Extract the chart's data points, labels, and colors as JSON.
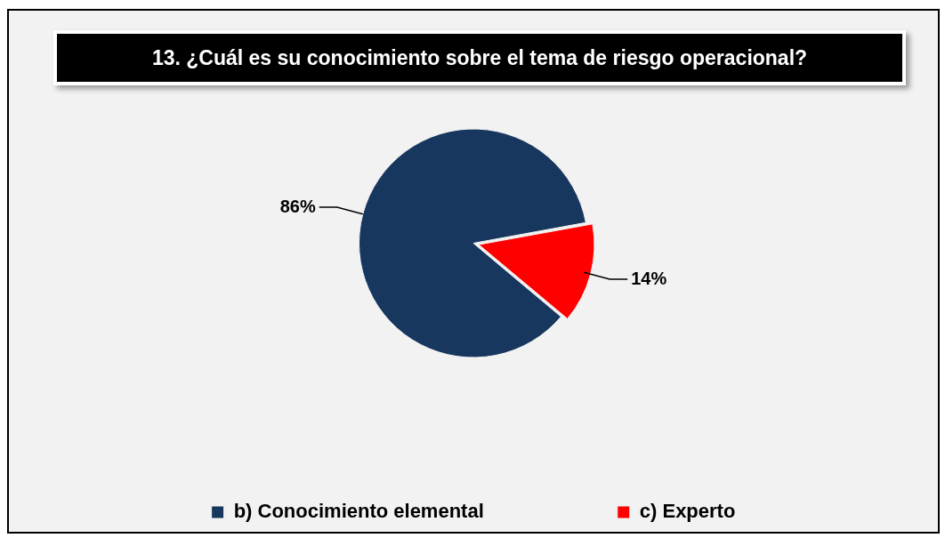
{
  "chart_data": {
    "type": "pie",
    "title": "13. ¿Cuál es su conocimiento sobre el tema de riesgo operacional?",
    "categories": [
      "b) Conocimiento elemental",
      "c) Experto"
    ],
    "values": [
      86,
      14
    ],
    "colors": [
      "#17375e",
      "#ff0000"
    ],
    "value_labels": [
      "86%",
      "14%"
    ],
    "legend": "bottom"
  }
}
